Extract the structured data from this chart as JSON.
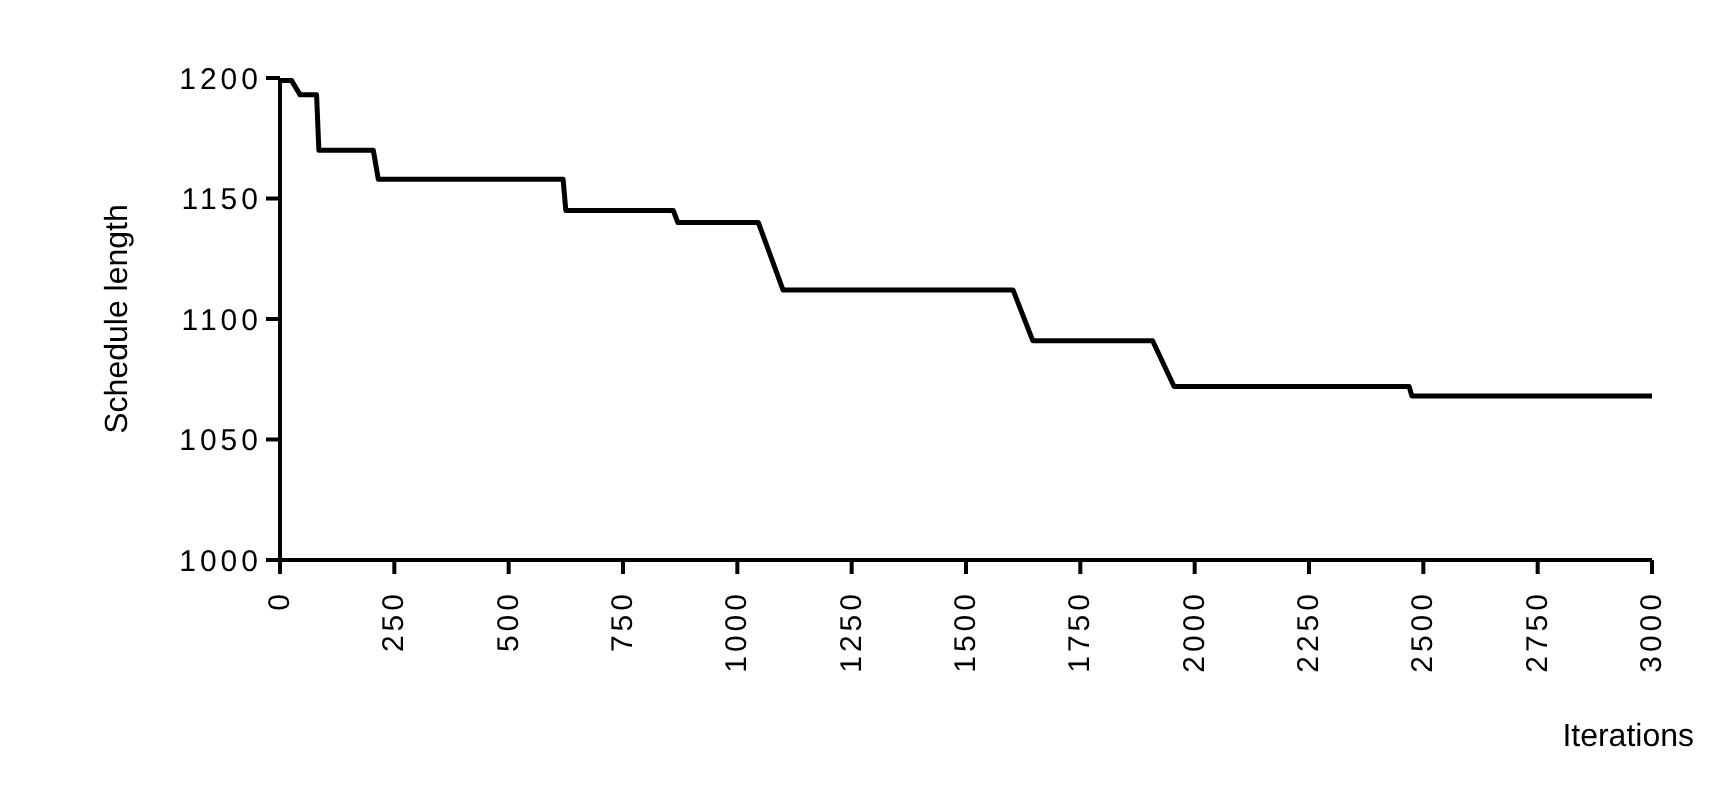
{
  "chart_data": {
    "type": "line",
    "xlabel": "Iterations",
    "ylabel": "Schedule length",
    "x": [
      0,
      25,
      44,
      80,
      85,
      204,
      215,
      619,
      625,
      860,
      870,
      1046,
      1100,
      1603,
      1646,
      1908,
      1955,
      2469,
      2475,
      3000
    ],
    "series": [
      {
        "color": "#000000",
        "values": [
          1199,
          1199,
          1193,
          1193,
          1170,
          1170,
          1158,
          1158,
          1145,
          1145,
          1140,
          1140,
          1112,
          1112,
          1091,
          1091,
          1072,
          1072,
          1068,
          1068
        ]
      }
    ],
    "xlim": [
      0,
      3000
    ],
    "xticks": [
      0,
      250,
      500,
      750,
      1000,
      1250,
      1500,
      1750,
      2000,
      2250,
      2500,
      2750,
      3000
    ],
    "ylim": [
      1000,
      1200
    ],
    "yticks": [
      1000,
      1050,
      1100,
      1150,
      1200
    ],
    "grid": false,
    "marker": "none",
    "line_style": "solid"
  }
}
